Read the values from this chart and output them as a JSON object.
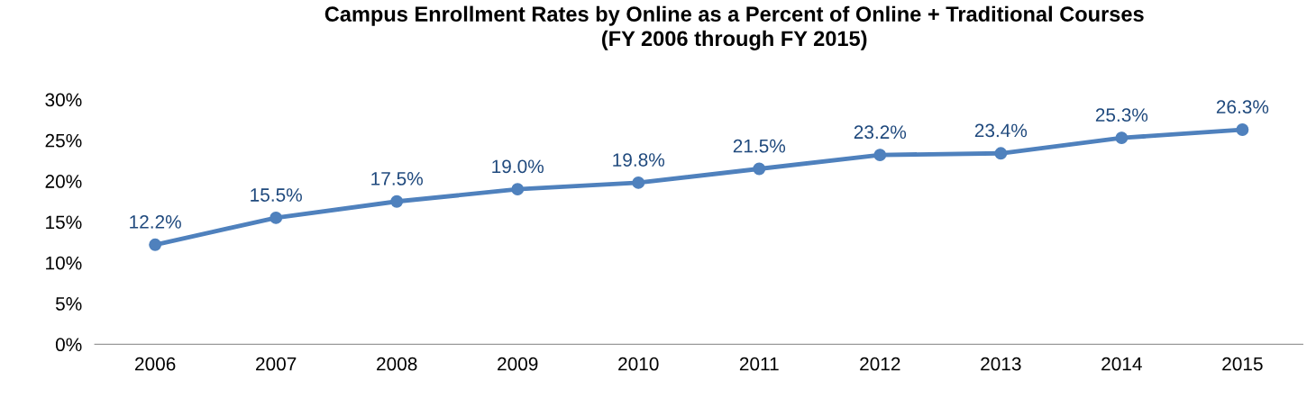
{
  "chart_data": {
    "type": "line",
    "title": "Campus Enrollment Rates by Online as a Percent of Online + Traditional Courses\n(FY 2006 through FY 2015)",
    "categories": [
      "2006",
      "2007",
      "2008",
      "2009",
      "2010",
      "2011",
      "2012",
      "2013",
      "2014",
      "2015"
    ],
    "series": [
      {
        "color": "#4f81bd",
        "values": [
          12.2,
          15.5,
          17.5,
          19.0,
          19.8,
          21.5,
          23.2,
          23.4,
          25.3,
          26.3
        ],
        "value_labels": [
          "12.2%",
          "15.5%",
          "17.5%",
          "19.0%",
          "19.8%",
          "21.5%",
          "23.2%",
          "23.4%",
          "25.3%",
          "26.3%"
        ]
      }
    ],
    "ylim": [
      0,
      30
    ],
    "yticks": [
      {
        "value": 0,
        "label": "0%"
      },
      {
        "value": 5,
        "label": "5%"
      },
      {
        "value": 10,
        "label": "10%"
      },
      {
        "value": 15,
        "label": "15%"
      },
      {
        "value": 20,
        "label": "20%"
      },
      {
        "value": 25,
        "label": "25%"
      },
      {
        "value": 30,
        "label": "30%"
      }
    ],
    "grid": false,
    "legend": false,
    "marker": "circle",
    "line_style": "solid"
  }
}
